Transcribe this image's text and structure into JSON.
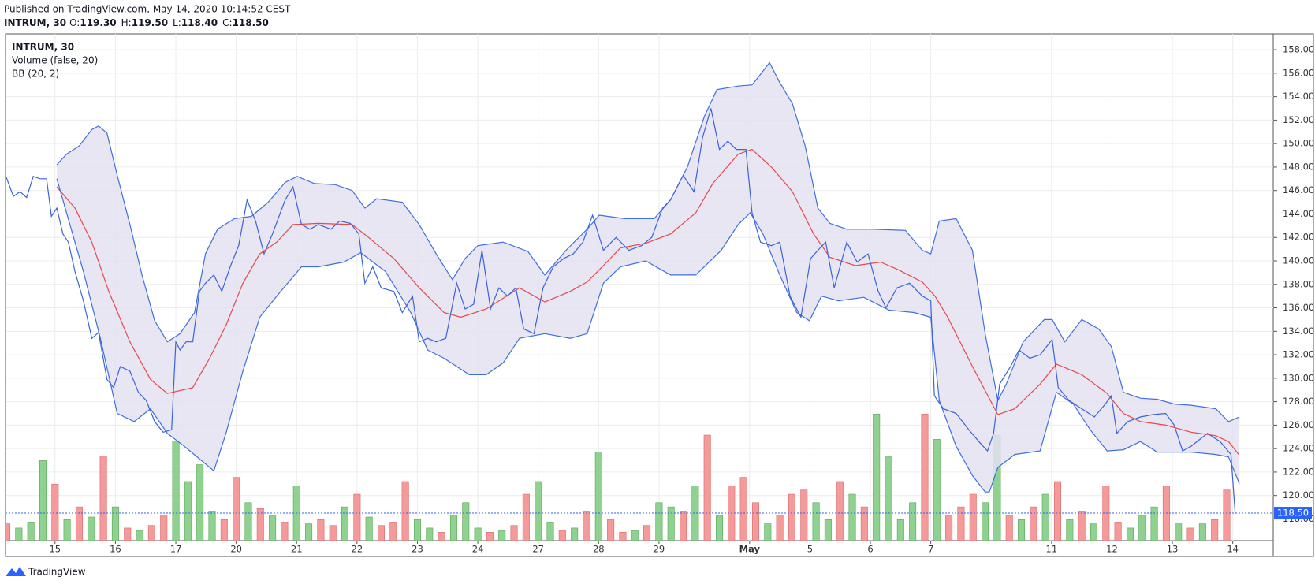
{
  "header": {
    "published": "Published on TradingView.com, May 14, 2020 10:14:52 CEST",
    "symbol": "INTRUM, 30",
    "ohlc": [
      {
        "key": "O:",
        "value": "119.30"
      },
      {
        "key": "H:",
        "value": "119.50"
      },
      {
        "key": "L:",
        "value": "118.40"
      },
      {
        "key": "C:",
        "value": "118.50"
      }
    ]
  },
  "footer": {
    "brand": "TradingView"
  },
  "chart_data": {
    "type": "line",
    "xlim": [
      0.18,
      21.17
    ],
    "ylim": [
      116.15,
      159.35
    ],
    "grid": true,
    "xticks": [
      {
        "value": 1,
        "label": "15"
      },
      {
        "value": 2,
        "label": "16"
      },
      {
        "value": 3,
        "label": "17"
      },
      {
        "value": 4,
        "label": "20"
      },
      {
        "value": 5,
        "label": "21"
      },
      {
        "value": 6,
        "label": "22"
      },
      {
        "value": 7,
        "label": "23"
      },
      {
        "value": 8,
        "label": "24"
      },
      {
        "value": 9,
        "label": "27"
      },
      {
        "value": 10,
        "label": "28"
      },
      {
        "value": 11,
        "label": "29"
      },
      {
        "value": 12.5,
        "label": "May"
      },
      {
        "value": 13.5,
        "label": "5"
      },
      {
        "value": 14.5,
        "label": "6"
      },
      {
        "value": 15.5,
        "label": "7"
      },
      {
        "value": 17.5,
        "label": "11"
      },
      {
        "value": 18.5,
        "label": "12"
      },
      {
        "value": 19.5,
        "label": "13"
      },
      {
        "value": 20.5,
        "label": "14"
      }
    ],
    "yticks": [
      {
        "value": 118,
        "label": "118.00"
      },
      {
        "value": 120,
        "label": "120.00"
      },
      {
        "value": 122,
        "label": "122.00"
      },
      {
        "value": 124,
        "label": "124.00"
      },
      {
        "value": 126,
        "label": "126.00"
      },
      {
        "value": 128,
        "label": "128.00"
      },
      {
        "value": 130,
        "label": "130.00"
      },
      {
        "value": 132,
        "label": "132.00"
      },
      {
        "value": 134,
        "label": "134.00"
      },
      {
        "value": 136,
        "label": "136.00"
      },
      {
        "value": 138,
        "label": "138.00"
      },
      {
        "value": 140,
        "label": "140.00"
      },
      {
        "value": 142,
        "label": "142.00"
      },
      {
        "value": 144,
        "label": "144.00"
      },
      {
        "value": 146,
        "label": "146.00"
      },
      {
        "value": 148,
        "label": "148.00"
      },
      {
        "value": 150,
        "label": "150.00"
      },
      {
        "value": 152,
        "label": "152.00"
      },
      {
        "value": 154,
        "label": "154.00"
      },
      {
        "value": 156,
        "label": "156.00"
      },
      {
        "value": 158,
        "label": "158.00"
      }
    ],
    "last_price": {
      "value": 118.5,
      "label": "118.50",
      "color": "#2962ff"
    },
    "series": [
      {
        "name": "INTRUM, 30",
        "color": "#3a63d8",
        "x": [
          0.18,
          0.31,
          0.42,
          0.53,
          0.64,
          0.75,
          0.86,
          0.94,
          1.03,
          1.13,
          1.22,
          1.33,
          1.47,
          1.61,
          1.72,
          1.86,
          1.97,
          2.08,
          2.24,
          2.38,
          2.51,
          2.65,
          2.79,
          2.93,
          3.0,
          3.07,
          3.17,
          3.28,
          3.39,
          3.49,
          3.63,
          3.76,
          3.9,
          4.04,
          4.18,
          4.32,
          4.46,
          4.6,
          4.81,
          4.94,
          5.08,
          5.22,
          5.36,
          5.57,
          5.71,
          5.89,
          6.03,
          6.13,
          6.26,
          6.4,
          6.61,
          6.75,
          6.92,
          7.03,
          7.17,
          7.31,
          7.47,
          7.65,
          7.79,
          7.93,
          8.07,
          8.21,
          8.35,
          8.49,
          8.63,
          8.76,
          8.93,
          9.08,
          9.25,
          9.42,
          9.58,
          9.74,
          9.9,
          10.08,
          10.29,
          10.5,
          10.71,
          10.88,
          11.06,
          11.19,
          11.4,
          11.58,
          11.72,
          11.86,
          12.0,
          12.14,
          12.28,
          12.44,
          12.54,
          12.68,
          12.86,
          13.0,
          13.17,
          13.35,
          13.51,
          13.63,
          13.76,
          13.9,
          14.11,
          14.28,
          14.46,
          14.63,
          14.76,
          14.94,
          15.15,
          15.36,
          15.5,
          15.56,
          15.71,
          15.92,
          16.13,
          16.33,
          16.44,
          16.54,
          16.64,
          16.82,
          16.96,
          17.14,
          17.31,
          17.51,
          17.61,
          17.79,
          18.0,
          18.21,
          18.39,
          18.49,
          18.58,
          18.76,
          18.97,
          19.18,
          19.39,
          19.53,
          19.67,
          19.81,
          20.08,
          20.29,
          20.47,
          20.54
        ],
        "values": [
          147.3,
          145.5,
          145.9,
          145.4,
          147.2,
          147.0,
          147.0,
          143.8,
          144.5,
          142.3,
          141.6,
          139.1,
          136.6,
          133.4,
          133.9,
          129.9,
          129.2,
          131.0,
          130.6,
          128.8,
          128.1,
          126.3,
          125.4,
          125.6,
          133.1,
          132.4,
          133.1,
          133.1,
          137.4,
          138.1,
          138.8,
          137.4,
          139.5,
          141.3,
          145.2,
          143.4,
          140.6,
          142.3,
          145.2,
          146.3,
          143.1,
          142.7,
          143.1,
          142.7,
          143.4,
          143.2,
          142.3,
          138.1,
          139.5,
          137.7,
          137.4,
          135.6,
          137.0,
          133.1,
          133.4,
          133.1,
          133.4,
          138.1,
          135.9,
          136.3,
          140.9,
          135.9,
          137.7,
          137.0,
          137.7,
          134.2,
          133.8,
          137.7,
          139.5,
          140.2,
          140.6,
          141.6,
          143.9,
          140.9,
          142.0,
          140.9,
          141.3,
          142.0,
          144.5,
          145.2,
          147.3,
          145.9,
          150.5,
          153.0,
          149.5,
          150.2,
          149.5,
          149.5,
          144.1,
          141.6,
          141.3,
          141.6,
          137.0,
          135.2,
          140.2,
          140.9,
          141.6,
          137.7,
          141.6,
          139.9,
          140.6,
          137.4,
          136.0,
          137.7,
          138.1,
          137.0,
          136.6,
          128.5,
          127.4,
          127.0,
          125.6,
          124.4,
          123.8,
          125.3,
          129.5,
          131.0,
          132.4,
          131.7,
          132.0,
          133.3,
          129.2,
          128.1,
          127.4,
          126.7,
          127.8,
          128.5,
          125.3,
          126.3,
          126.7,
          126.9,
          127.0,
          126.0,
          123.8,
          124.2,
          125.3,
          124.6,
          123.5,
          118.5
        ]
      }
    ],
    "bands": {
      "name": "BB (20, 2)",
      "color": "#3f6ee0",
      "fill": "#e3e2f0",
      "basis_color": "#e8484a",
      "upper": {
        "x": [
          1.03,
          1.19,
          1.4,
          1.61,
          1.72,
          1.86,
          2.03,
          2.24,
          2.44,
          2.65,
          2.86,
          3.07,
          3.31,
          3.49,
          3.69,
          3.97,
          4.25,
          4.53,
          4.81,
          5.01,
          5.29,
          5.64,
          5.92,
          6.13,
          6.33,
          6.75,
          7.03,
          7.31,
          7.58,
          7.79,
          8.0,
          8.42,
          8.83,
          9.11,
          9.46,
          9.81,
          10.01,
          10.43,
          10.92,
          11.19,
          11.47,
          11.75,
          11.96,
          12.31,
          12.54,
          12.65,
          12.83,
          13.0,
          13.21,
          13.42,
          13.63,
          13.83,
          14.11,
          14.53,
          15.08,
          15.36,
          15.5,
          15.64,
          15.92,
          16.19,
          16.4,
          16.61,
          16.75,
          17.03,
          17.38,
          17.51,
          17.72,
          18.0,
          18.28,
          18.49,
          18.69,
          18.97,
          19.25,
          19.53,
          19.81,
          20.22,
          20.43,
          20.61
        ],
        "values": [
          148.2,
          149.1,
          149.8,
          151.2,
          151.5,
          150.9,
          147.3,
          143.1,
          138.8,
          134.9,
          133.1,
          133.8,
          135.6,
          140.6,
          142.7,
          143.6,
          143.8,
          145.0,
          146.7,
          147.2,
          146.6,
          146.5,
          146.0,
          144.5,
          145.3,
          145.0,
          143.1,
          140.6,
          138.4,
          140.2,
          141.3,
          141.6,
          140.8,
          138.8,
          140.9,
          142.7,
          143.9,
          143.6,
          143.6,
          145.2,
          148.0,
          152.3,
          154.6,
          154.9,
          155.0,
          155.7,
          156.9,
          155.2,
          153.4,
          149.8,
          144.5,
          143.2,
          142.7,
          142.7,
          142.6,
          140.9,
          140.6,
          143.4,
          143.6,
          140.9,
          133.8,
          128.1,
          129.5,
          133.1,
          135.0,
          135.0,
          133.1,
          135.0,
          134.2,
          132.7,
          128.8,
          128.3,
          128.2,
          127.8,
          127.7,
          127.4,
          126.3,
          126.7
        ]
      },
      "basis": {
        "x": [
          1.03,
          1.33,
          1.61,
          1.89,
          2.24,
          2.58,
          2.86,
          3.28,
          3.56,
          3.83,
          4.11,
          4.39,
          4.67,
          4.94,
          5.36,
          5.92,
          6.19,
          6.61,
          7.03,
          7.44,
          7.72,
          8.14,
          8.69,
          9.11,
          9.53,
          9.81,
          10.08,
          10.36,
          10.78,
          11.19,
          11.61,
          11.89,
          12.31,
          12.54,
          12.86,
          13.21,
          13.56,
          13.83,
          14.25,
          14.67,
          14.94,
          15.36,
          15.57,
          15.78,
          16.19,
          16.61,
          16.89,
          17.31,
          17.58,
          18.0,
          18.42,
          18.69,
          18.97,
          19.39,
          19.81,
          20.22,
          20.43,
          20.6
        ],
        "values": [
          146.3,
          144.5,
          141.6,
          137.4,
          133.1,
          129.9,
          128.7,
          129.2,
          131.7,
          134.5,
          138.1,
          140.6,
          141.6,
          143.1,
          143.2,
          143.1,
          142.0,
          140.2,
          137.7,
          135.6,
          135.2,
          135.9,
          137.7,
          136.5,
          137.4,
          138.2,
          139.6,
          141.1,
          141.5,
          142.3,
          144.1,
          146.6,
          149.1,
          149.5,
          148.0,
          145.9,
          142.3,
          140.3,
          139.6,
          139.9,
          139.3,
          138.2,
          137.0,
          135.2,
          131.0,
          126.9,
          127.4,
          129.5,
          131.2,
          130.3,
          128.7,
          127.0,
          126.3,
          126.0,
          125.4,
          125.1,
          124.6,
          123.5
        ]
      },
      "lower": {
        "x": [
          1.03,
          1.19,
          1.47,
          1.75,
          2.03,
          2.31,
          2.58,
          2.86,
          3.14,
          3.42,
          3.63,
          3.83,
          4.11,
          4.39,
          4.67,
          5.08,
          5.36,
          5.78,
          6.06,
          6.47,
          6.89,
          7.17,
          7.44,
          7.86,
          8.14,
          8.42,
          8.69,
          9.11,
          9.53,
          9.81,
          10.08,
          10.36,
          10.78,
          11.19,
          11.61,
          12.03,
          12.31,
          12.51,
          12.72,
          13.0,
          13.28,
          13.49,
          13.69,
          13.97,
          14.39,
          14.81,
          15.22,
          15.5,
          15.64,
          15.92,
          16.19,
          16.4,
          16.47,
          16.61,
          16.89,
          17.31,
          17.58,
          17.86,
          18.14,
          18.42,
          18.69,
          18.97,
          19.25,
          19.81,
          20.22,
          20.43,
          20.61
        ],
        "values": [
          147.0,
          144.1,
          139.1,
          133.4,
          127.0,
          126.3,
          127.4,
          125.3,
          124.2,
          123.0,
          122.1,
          125.3,
          130.6,
          135.2,
          137.0,
          139.5,
          139.5,
          139.9,
          140.7,
          139.1,
          135.6,
          132.4,
          131.7,
          130.3,
          130.3,
          131.3,
          133.4,
          133.8,
          133.4,
          133.8,
          138.1,
          139.5,
          140.0,
          138.8,
          138.8,
          140.9,
          143.1,
          144.1,
          142.3,
          138.8,
          135.6,
          134.9,
          137.0,
          136.6,
          136.9,
          135.8,
          135.6,
          135.2,
          128.1,
          124.2,
          121.7,
          120.3,
          120.3,
          122.4,
          123.5,
          123.8,
          128.8,
          127.8,
          125.6,
          123.8,
          123.9,
          124.6,
          123.7,
          123.7,
          123.5,
          123.3,
          121.0
        ]
      }
    },
    "volume": {
      "name": "Volume (false, 20)",
      "up_color": "#8fd18f",
      "down_color": "#f59a9a",
      "x": [
        0.2,
        0.4,
        0.6,
        0.8,
        1.0,
        1.2,
        1.4,
        1.6,
        1.8,
        2.0,
        2.2,
        2.4,
        2.6,
        2.8,
        3.0,
        3.2,
        3.4,
        3.6,
        3.8,
        4.0,
        4.2,
        4.4,
        4.6,
        4.8,
        5.0,
        5.2,
        5.4,
        5.6,
        5.8,
        6.0,
        6.2,
        6.4,
        6.6,
        6.8,
        7.0,
        7.2,
        7.4,
        7.6,
        7.8,
        8.0,
        8.2,
        8.4,
        8.6,
        8.8,
        9.0,
        9.2,
        9.4,
        9.6,
        9.8,
        10.0,
        10.2,
        10.4,
        10.6,
        10.8,
        11.0,
        11.2,
        11.4,
        11.6,
        11.8,
        12.0,
        12.2,
        12.4,
        12.6,
        12.8,
        13.0,
        13.2,
        13.4,
        13.6,
        13.8,
        14.0,
        14.2,
        14.4,
        14.6,
        14.8,
        15.0,
        15.2,
        15.4,
        15.6,
        15.8,
        16.0,
        16.2,
        16.4,
        16.6,
        16.8,
        17.0,
        17.2,
        17.4,
        17.6,
        17.8,
        18.0,
        18.2,
        18.4,
        18.6,
        18.8,
        19.0,
        19.2,
        19.4,
        19.6,
        19.8,
        20.0,
        20.2,
        20.4
      ],
      "values": [
        20,
        15,
        22,
        95,
        67,
        25,
        40,
        28,
        100,
        40,
        15,
        12,
        18,
        30,
        118,
        70,
        90,
        35,
        25,
        75,
        45,
        38,
        30,
        22,
        65,
        20,
        25,
        18,
        40,
        55,
        28,
        18,
        22,
        70,
        25,
        15,
        10,
        30,
        45,
        15,
        10,
        12,
        18,
        55,
        70,
        22,
        12,
        15,
        35,
        105,
        25,
        10,
        12,
        18,
        45,
        40,
        35,
        65,
        125,
        30,
        65,
        75,
        45,
        20,
        30,
        55,
        60,
        45,
        25,
        70,
        55,
        40,
        150,
        100,
        25,
        45,
        150,
        120,
        30,
        40,
        55,
        45,
        125,
        30,
        25,
        40,
        55,
        70,
        25,
        35,
        20,
        65,
        22,
        15,
        30,
        40,
        65,
        20,
        15,
        20,
        25,
        60
      ],
      "up": [
        false,
        true,
        true,
        true,
        false,
        true,
        false,
        true,
        false,
        true,
        false,
        true,
        false,
        false,
        true,
        true,
        true,
        true,
        false,
        false,
        true,
        false,
        true,
        false,
        true,
        true,
        false,
        false,
        true,
        false,
        true,
        false,
        false,
        false,
        true,
        true,
        false,
        true,
        true,
        true,
        false,
        true,
        false,
        false,
        true,
        true,
        false,
        true,
        false,
        true,
        false,
        false,
        true,
        false,
        true,
        true,
        false,
        true,
        false,
        true,
        false,
        false,
        false,
        true,
        false,
        false,
        false,
        true,
        true,
        false,
        true,
        false,
        true,
        true,
        true,
        true,
        false,
        true,
        false,
        false,
        false,
        true,
        true,
        false,
        true,
        false,
        true,
        false,
        true,
        false,
        true,
        false,
        false,
        true,
        true,
        true,
        false,
        true,
        false,
        true,
        false,
        false
      ]
    }
  }
}
